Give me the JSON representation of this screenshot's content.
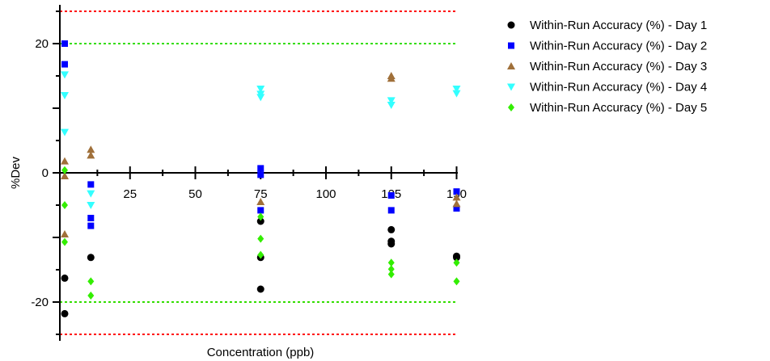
{
  "chart_data": {
    "type": "scatter",
    "title": "",
    "xlabel": "Concentration (ppb)",
    "ylabel": "%Dev",
    "xlim": [
      0,
      150
    ],
    "ylim": [
      -26,
      26
    ],
    "x_ticks": [
      "25",
      "50",
      "75",
      "100",
      "125",
      "150"
    ],
    "x_tick_values": [
      25,
      50,
      75,
      100,
      125,
      150
    ],
    "y_ticks": [
      "20",
      "0",
      "-20"
    ],
    "y_tick_values": [
      20,
      0,
      -20
    ],
    "grid": false,
    "legend_position": "right",
    "reference_lines": [
      {
        "y": 25,
        "color": "#ff0000"
      },
      {
        "y": -25,
        "color": "#ff0000"
      },
      {
        "y": 20,
        "color": "#33dd00"
      },
      {
        "y": -20,
        "color": "#33dd00"
      }
    ],
    "series": [
      {
        "name": "Within-Run Accuracy (%) - Day 1",
        "marker": "circle",
        "color": "#000000",
        "points": [
          [
            0,
            -16.3
          ],
          [
            0,
            -21.8
          ],
          [
            10,
            -13.1
          ],
          [
            75,
            -7.5
          ],
          [
            75,
            -13.1
          ],
          [
            75,
            -18
          ],
          [
            125,
            -8.8
          ],
          [
            125,
            -10.6
          ],
          [
            125,
            -11
          ],
          [
            150,
            -12.9
          ],
          [
            150,
            -13.1
          ]
        ]
      },
      {
        "name": "Within-Run Accuracy (%) - Day 2",
        "marker": "square",
        "color": "#0000ff",
        "points": [
          [
            0,
            20
          ],
          [
            0,
            16.8
          ],
          [
            10,
            -1.8
          ],
          [
            10,
            -7
          ],
          [
            10,
            -8.2
          ],
          [
            75,
            0.7
          ],
          [
            75,
            -0.3
          ],
          [
            75,
            -5.8
          ],
          [
            125,
            -3.5
          ],
          [
            125,
            -5.8
          ],
          [
            150,
            -2.9
          ],
          [
            150,
            -5.5
          ]
        ]
      },
      {
        "name": "Within-Run Accuracy (%) - Day 3",
        "marker": "triangle-up",
        "color": "#a0703a",
        "points": [
          [
            0,
            1.8
          ],
          [
            0,
            -0.5
          ],
          [
            0,
            -9.5
          ],
          [
            10,
            3.6
          ],
          [
            10,
            2.7
          ],
          [
            75,
            -4.5
          ],
          [
            125,
            15
          ],
          [
            125,
            14.6
          ],
          [
            150,
            -3.8
          ],
          [
            150,
            -4.8
          ]
        ]
      },
      {
        "name": "Within-Run Accuracy (%) - Day 4",
        "marker": "triangle-down",
        "color": "#33ffff",
        "points": [
          [
            0,
            15.2
          ],
          [
            0,
            12
          ],
          [
            0,
            6.3
          ],
          [
            10,
            -3.2
          ],
          [
            10,
            -5
          ],
          [
            75,
            13
          ],
          [
            75,
            12.2
          ],
          [
            75,
            11.7
          ],
          [
            125,
            11.2
          ],
          [
            125,
            10.5
          ],
          [
            150,
            13
          ],
          [
            150,
            12.3
          ]
        ]
      },
      {
        "name": "Within-Run Accuracy (%) - Day 5",
        "marker": "diamond",
        "color": "#33ee00",
        "points": [
          [
            0,
            0.4
          ],
          [
            0,
            -5
          ],
          [
            0,
            -10.7
          ],
          [
            10,
            -16.8
          ],
          [
            10,
            -19
          ],
          [
            75,
            -6.8
          ],
          [
            75,
            -10.2
          ],
          [
            75,
            -12.7
          ],
          [
            125,
            -13.9
          ],
          [
            125,
            -14.9
          ],
          [
            125,
            -15.7
          ],
          [
            150,
            -13.9
          ],
          [
            150,
            -16.8
          ]
        ]
      }
    ]
  }
}
